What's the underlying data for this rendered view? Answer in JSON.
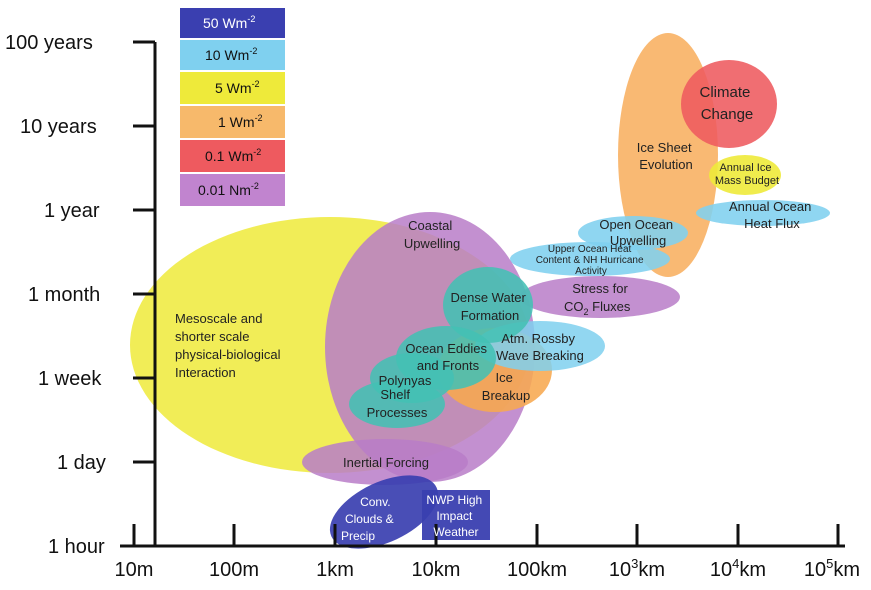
{
  "y_ticks": [
    "100 years",
    "10 years",
    "1 year",
    "1 month",
    "1 week",
    "1 day",
    "1 hour"
  ],
  "x_ticks": [
    {
      "base": "10m",
      "sup": ""
    },
    {
      "base": "100m",
      "sup": ""
    },
    {
      "base": "1km",
      "sup": ""
    },
    {
      "base": "10km",
      "sup": ""
    },
    {
      "base": "100km",
      "sup": ""
    },
    {
      "base": "10",
      "sup": "3",
      "suffix": "km"
    },
    {
      "base": "10",
      "sup": "4",
      "suffix": "km"
    },
    {
      "base": "10",
      "sup": "5",
      "suffix": "km"
    }
  ],
  "legend": [
    {
      "label": "50 Wm",
      "sup": "-2",
      "color": "#3a3fb0"
    },
    {
      "label": "10 Wm",
      "sup": "-2",
      "color": "#7fd0ef"
    },
    {
      "label": "5 Wm",
      "sup": "-2",
      "color": "#eeea3a"
    },
    {
      "label": "1 Wm",
      "sup": "-2",
      "color": "#f7b96b"
    },
    {
      "label": "0.1 Wm",
      "sup": "-2",
      "color": "#ee5a5f"
    },
    {
      "label": "0.01 Nm",
      "sup": "-2",
      "color": "#c184cf"
    }
  ],
  "processes": {
    "mesoscale": [
      "Mesoscale and",
      "shorter scale",
      "physical-biological",
      "Interaction"
    ],
    "coastal": [
      "Coastal",
      "Upwelling"
    ],
    "dense_water": [
      "Dense Water",
      "Formation"
    ],
    "ocean_eddies": [
      "Ocean Eddies",
      "and Fronts"
    ],
    "polynyas": [
      "Polynyas"
    ],
    "shelf": [
      "Shelf",
      "Processes"
    ],
    "ice_breakup": [
      "Ice",
      "Breakup"
    ],
    "rossby": [
      "Atm. Rossby",
      "Wave Breaking"
    ],
    "stress": [
      "Stress for",
      "CO",
      "2",
      " Fluxes"
    ],
    "upper_ocean": [
      "Upper Ocean Heat",
      "Content & NH Hurricane",
      "Activity"
    ],
    "open_ocean": [
      "Open Ocean",
      "Upwelling"
    ],
    "ice_sheet": [
      "Ice Sheet",
      "Evolution"
    ],
    "climate": [
      "Climate",
      "Change"
    ],
    "annual_ice": [
      "Annual Ice",
      "Mass Budget"
    ],
    "annual_heat": [
      "Annual Ocean",
      "Heat Flux"
    ],
    "inertial": [
      "Inertial Forcing"
    ],
    "convection": [
      "Conv.",
      "Clouds &",
      "Precip"
    ],
    "nwp": [
      "NWP High",
      "Impact",
      "Weather"
    ]
  },
  "colors": {
    "yellow": "#eeea3a",
    "purple": "#b87cc8",
    "teal": "#43c0b4",
    "orange": "#f7a850",
    "light_blue": "#7fd0ef",
    "red": "#ee5a5f",
    "dark_blue": "#3a3fb0",
    "axis": "#111111"
  }
}
